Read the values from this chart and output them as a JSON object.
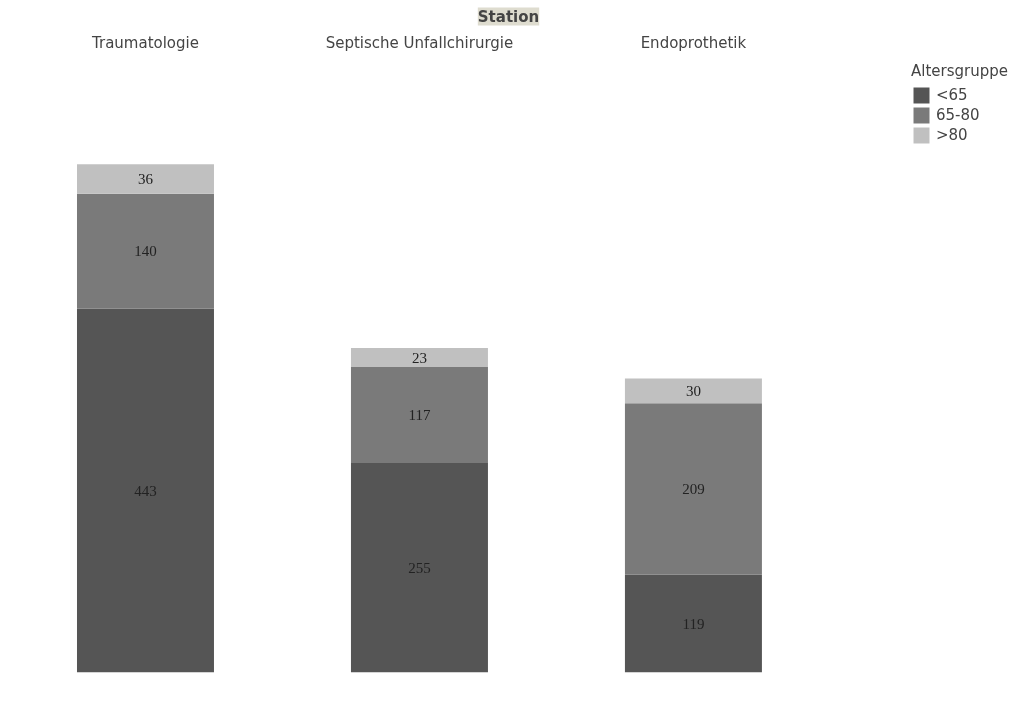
{
  "chart_data": {
    "type": "bar",
    "title": "Station",
    "categories": [
      "Traumatologie",
      "Septische Unfallchirurgie",
      "Endoprothetik"
    ],
    "stacked": true,
    "data_labels": true,
    "legend": "top right",
    "legend_title": "Altersgruppe",
    "grid": false,
    "series": [
      {
        "name": "<65",
        "color": "#555555",
        "values": [
          443,
          255,
          119
        ]
      },
      {
        "name": "65-80",
        "color": "#7a7a7a",
        "values": [
          140,
          117,
          209
        ]
      },
      {
        "name": ">80",
        "color": "#c0c0c0",
        "values": [
          36,
          23,
          30
        ]
      }
    ]
  }
}
